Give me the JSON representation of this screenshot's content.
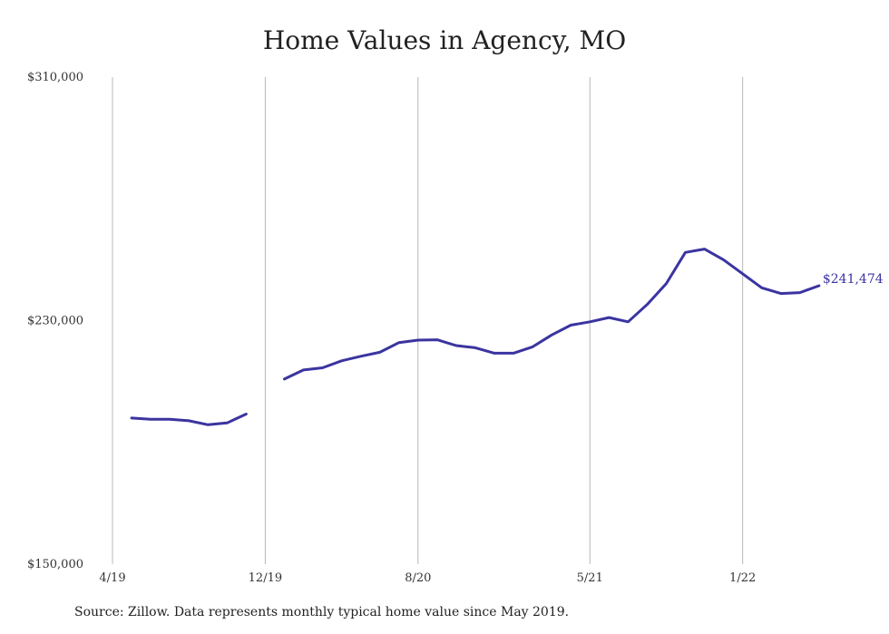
{
  "title": "Home Values in Agency, MO",
  "source": "Source: Zillow. Data represents monthly typical home value since May 2019.",
  "chart_data": {
    "type": "line",
    "title": "Home Values in Agency, MO",
    "xlabel": "",
    "ylabel": "",
    "ylim": [
      150000,
      310000
    ],
    "x_tick_labels": [
      "4/19",
      "12/19",
      "8/20",
      "5/21",
      "1/22"
    ],
    "y_tick_labels": [
      "$310,000",
      "$230,000",
      "$150,000"
    ],
    "grid": "vertical",
    "line_color": "#3b34a0",
    "end_label": "$241,474",
    "series": [
      {
        "segments": [
          {
            "x": [
              "2019-05",
              "2019-06",
              "2019-07",
              "2019-08",
              "2019-09",
              "2019-10",
              "2019-11"
            ],
            "y": [
              198000,
              197600,
              197600,
              197100,
              195800,
              196400,
              199300
            ]
          },
          {
            "x": [
              "2020-01",
              "2020-02",
              "2020-03",
              "2020-04",
              "2020-05",
              "2020-06",
              "2020-07",
              "2020-08",
              "2020-09",
              "2020-10",
              "2020-11",
              "2020-12",
              "2021-01",
              "2021-02",
              "2021-03",
              "2021-04",
              "2021-05",
              "2021-06",
              "2021-07",
              "2021-08",
              "2021-09",
              "2021-10",
              "2021-11",
              "2021-12",
              "2022-01",
              "2022-02",
              "2022-03",
              "2022-04",
              "2022-05"
            ],
            "y": [
              210800,
              213800,
              214500,
              216800,
              218300,
              219600,
              222800,
              223600,
              223700,
              221800,
              221100,
              219300,
              219300,
              221400,
              225300,
              228500,
              229600,
              231000,
              229600,
              235300,
              242200,
              252400,
              253500,
              250000,
              245400,
              240800,
              238900,
              239200,
              241474
            ]
          }
        ]
      }
    ]
  }
}
